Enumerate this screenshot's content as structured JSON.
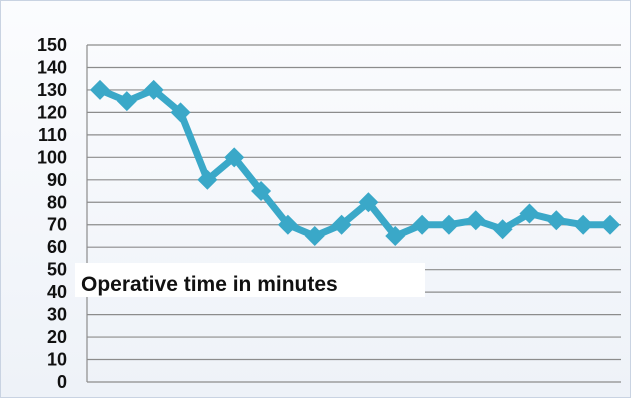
{
  "chart_data": {
    "type": "line",
    "title": "Operative time in minutes",
    "xlabel": "",
    "ylabel": "",
    "ylim": [
      0,
      150
    ],
    "yticks": [
      0,
      10,
      20,
      30,
      40,
      50,
      60,
      70,
      80,
      90,
      100,
      110,
      120,
      130,
      140,
      150
    ],
    "grid": true,
    "legend": "none",
    "x": [
      1,
      2,
      3,
      4,
      5,
      6,
      7,
      8,
      9,
      10,
      11,
      12,
      13,
      14,
      15,
      16,
      17,
      18,
      19,
      20
    ],
    "series": [
      {
        "values": [
          130,
          125,
          130,
          120,
          90,
          100,
          85,
          70,
          65,
          70,
          80,
          65,
          70,
          70,
          72,
          68,
          75,
          72,
          70,
          70
        ],
        "color": "#3aa8c8",
        "marker": "diamond"
      }
    ]
  }
}
